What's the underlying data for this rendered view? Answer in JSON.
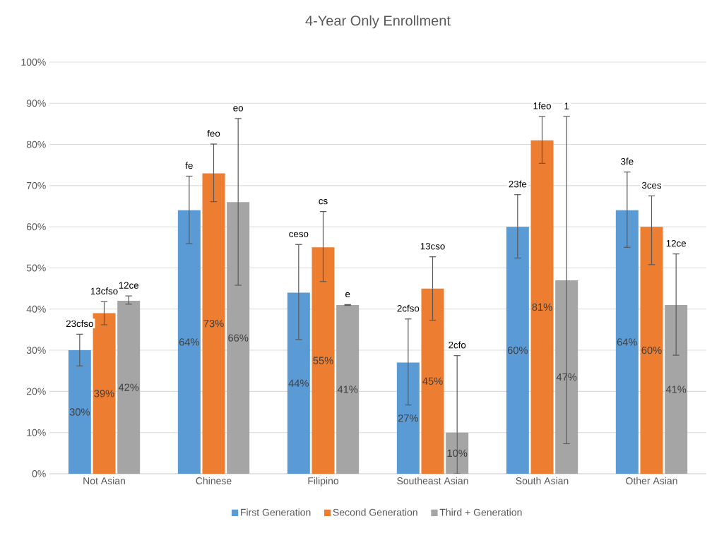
{
  "chart_data": {
    "type": "bar",
    "title": "4-Year Only Enrollment",
    "categories": [
      "Not Asian",
      "Chinese",
      "Filipino",
      "Southeast Asian",
      "South Asian",
      "Other Asian"
    ],
    "series": [
      {
        "name": "First Generation",
        "color": "#5b9bd5",
        "values": [
          30,
          64,
          44,
          27,
          60,
          64
        ],
        "errors": [
          [
            26.2,
            33.9
          ],
          [
            55.9,
            72.3
          ],
          [
            32.6,
            55.7
          ],
          [
            16.7,
            37.6
          ],
          [
            52.4,
            67.8
          ],
          [
            55.0,
            73.3
          ]
        ],
        "value_labels": [
          "30%",
          "64%",
          "44%",
          "27%",
          "60%",
          "64%"
        ]
      },
      {
        "name": "Second Generation",
        "color": "#ed7d31",
        "values": [
          39,
          73,
          55,
          45,
          81,
          60
        ],
        "errors": [
          [
            36.2,
            41.8
          ],
          [
            66.1,
            80.1
          ],
          [
            46.7,
            63.7
          ],
          [
            37.3,
            52.7
          ],
          [
            75.4,
            86.8
          ],
          [
            50.8,
            67.5
          ]
        ],
        "value_labels": [
          "39%",
          "73%",
          "55%",
          "45%",
          "81%",
          "60%"
        ]
      },
      {
        "name": "Third + Generation",
        "color": "#a5a5a5",
        "values": [
          42,
          66,
          41,
          10,
          47,
          41
        ],
        "errors": [
          [
            41.2,
            43.2
          ],
          [
            45.8,
            86.3
          ],
          [
            40.9,
            41.1
          ],
          [
            0,
            28.7
          ],
          [
            7.3,
            86.8
          ],
          [
            28.8,
            53.4
          ]
        ],
        "value_labels": [
          "42%",
          "66%",
          "41%",
          "10%",
          "47%",
          "41%"
        ]
      }
    ],
    "ylim": [
      0,
      100
    ],
    "yticks": [
      {
        "value": 0,
        "label": "0%"
      },
      {
        "value": 10,
        "label": "10%"
      },
      {
        "value": 20,
        "label": "20%"
      },
      {
        "value": 30,
        "label": "30%"
      },
      {
        "value": 40,
        "label": "40%"
      },
      {
        "value": 50,
        "label": "50%"
      },
      {
        "value": 60,
        "label": "60%"
      },
      {
        "value": 70,
        "label": "70%"
      },
      {
        "value": 80,
        "label": "80%"
      },
      {
        "value": 90,
        "label": "90%"
      },
      {
        "value": 100,
        "label": "100%"
      }
    ],
    "grid": "y",
    "legend": "bottom",
    "annotations": [
      "23cfso",
      "13cfso",
      "12ce",
      "fe",
      "feo",
      "eo",
      "ceso",
      "cs",
      "e",
      "2cfso",
      "13cso",
      "2cfo",
      "23fe",
      "1feo",
      "1",
      "3fe",
      "3ces",
      "12ce"
    ]
  }
}
